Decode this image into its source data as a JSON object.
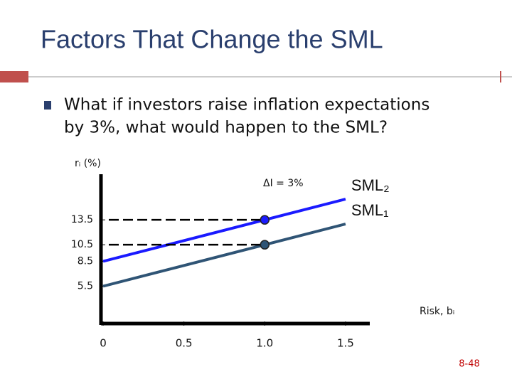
{
  "slide": {
    "title": "Factors That Change the SML",
    "bullet": [
      "What if investors raise inflation expectations",
      "by 3%, what would happen to the SML?"
    ],
    "page_number": "8-48"
  },
  "chart_data": {
    "type": "line",
    "y_label": "rᵢ (%)",
    "x_label": "Risk, bᵢ",
    "annotation": "ΔI = 3%",
    "x": [
      0,
      1.0,
      1.5
    ],
    "series": [
      {
        "name": "SML₂",
        "color": "#1a1aff",
        "values": [
          8.5,
          13.5,
          16
        ]
      },
      {
        "name": "SML₁",
        "color": "#2f5475",
        "values": [
          5.5,
          10.5,
          13
        ]
      }
    ],
    "highlight_x": 1.0,
    "xlim": [
      0,
      1.65
    ],
    "ylim": [
      1,
      19
    ],
    "xticks": [
      0,
      0.5,
      {
        "value": 1.0,
        "label": "1.0"
      },
      1.5
    ],
    "yticks": [
      5.5,
      8.5,
      10.5,
      13.5
    ]
  }
}
